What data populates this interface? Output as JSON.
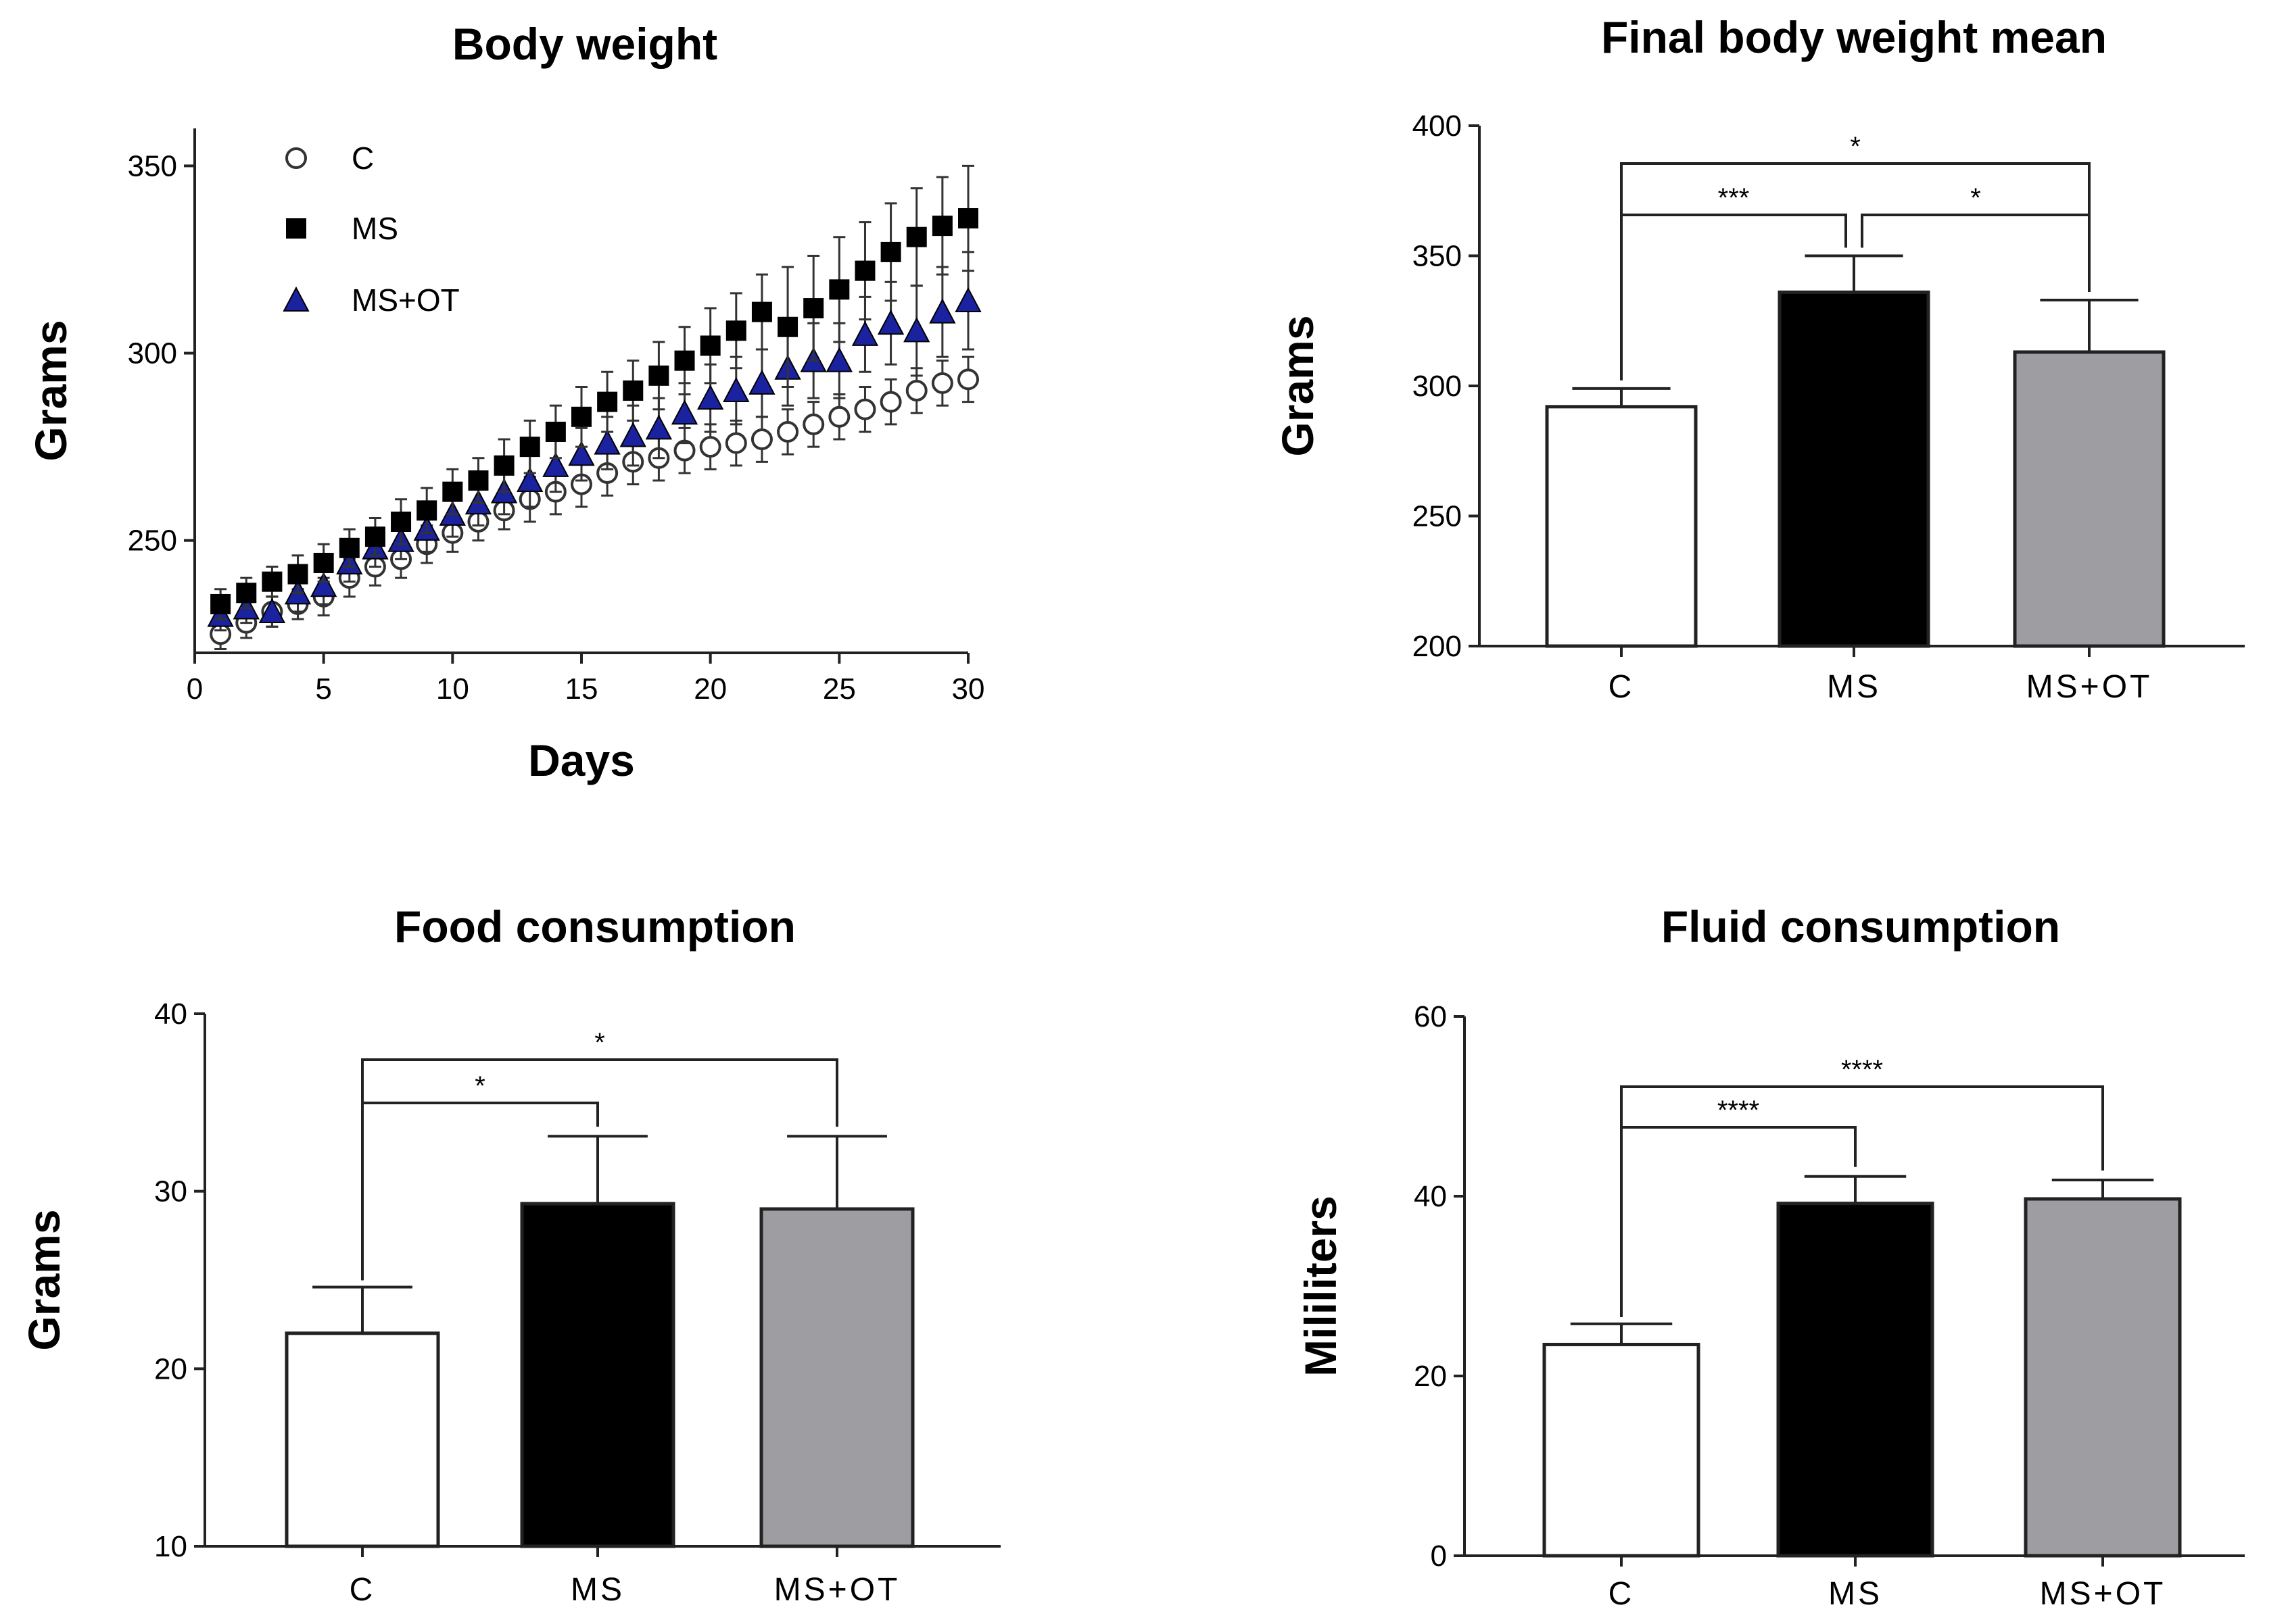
{
  "figure": {
    "panels": [
      {
        "title": "Body weight"
      },
      {
        "title": "Final body weight mean"
      },
      {
        "title": "Food consumption"
      },
      {
        "title": "Fluid consumption"
      }
    ]
  },
  "colors": {
    "C": "#ffffff",
    "MS": "#000000",
    "MS+OT_line": "#1a22a0",
    "MS+OT_bar": "#9d9da2",
    "axis": "#222222"
  },
  "chart_data": [
    {
      "type": "scatter",
      "title": "Body weight",
      "xlabel": "Days",
      "ylabel": "Grams",
      "xlim": [
        0,
        30
      ],
      "ylim": [
        220,
        360
      ],
      "xticks": [
        0,
        5,
        10,
        15,
        20,
        25,
        30
      ],
      "yticks": [
        250,
        300,
        350
      ],
      "x": [
        1,
        2,
        3,
        4,
        5,
        6,
        7,
        8,
        9,
        10,
        11,
        12,
        13,
        14,
        15,
        16,
        17,
        18,
        19,
        20,
        21,
        22,
        23,
        24,
        25,
        26,
        27,
        28,
        29,
        30
      ],
      "series": [
        {
          "name": "C",
          "marker": "circle-open",
          "values": [
            225,
            228,
            231,
            233,
            235,
            240,
            243,
            245,
            249,
            252,
            255,
            258,
            261,
            263,
            265,
            268,
            271,
            272,
            274,
            275,
            276,
            277,
            279,
            281,
            283,
            285,
            287,
            290,
            292,
            293
          ],
          "error": [
            4,
            4,
            4,
            4,
            5,
            5,
            5,
            5,
            5,
            5,
            5,
            5,
            6,
            6,
            6,
            6,
            6,
            6,
            6,
            6,
            6,
            6,
            6,
            6,
            6,
            6,
            6,
            6,
            6,
            6
          ]
        },
        {
          "name": "MS",
          "marker": "square-filled",
          "values": [
            233,
            236,
            239,
            241,
            244,
            248,
            251,
            255,
            258,
            263,
            266,
            270,
            275,
            279,
            283,
            287,
            290,
            294,
            298,
            302,
            306,
            311,
            307,
            312,
            317,
            322,
            327,
            331,
            334,
            336
          ],
          "error": [
            4,
            4,
            4,
            5,
            5,
            5,
            5,
            6,
            6,
            6,
            6,
            7,
            7,
            7,
            8,
            8,
            8,
            9,
            9,
            10,
            10,
            10,
            16,
            14,
            14,
            13,
            13,
            13,
            13,
            14
          ]
        },
        {
          "name": "MS+OT",
          "marker": "triangle-filled",
          "values": [
            230,
            232,
            231,
            236,
            238,
            244,
            248,
            250,
            253,
            257,
            260,
            263,
            266,
            270,
            273,
            276,
            278,
            280,
            284,
            288,
            290,
            292,
            296,
            298,
            298,
            305,
            308,
            306,
            311,
            314
          ],
          "error": [
            4,
            4,
            4,
            5,
            5,
            5,
            5,
            5,
            6,
            6,
            6,
            6,
            7,
            7,
            7,
            7,
            8,
            8,
            8,
            9,
            9,
            9,
            10,
            10,
            10,
            10,
            11,
            12,
            12,
            13
          ]
        }
      ],
      "legend": "top-left"
    },
    {
      "type": "bar",
      "title": "Final body weight mean",
      "ylabel": "Grams",
      "categories": [
        "C",
        "MS",
        "MS+OT"
      ],
      "values": [
        292,
        336,
        313
      ],
      "error": [
        7,
        14,
        20
      ],
      "ylim": [
        200,
        400
      ],
      "yticks": [
        200,
        250,
        300,
        350,
        400
      ],
      "significance": [
        {
          "from": "C",
          "to": "MS",
          "label": "***"
        },
        {
          "from": "MS",
          "to": "MS+OT",
          "label": "*"
        },
        {
          "from": "C",
          "to": "MS+OT",
          "label": "*"
        }
      ]
    },
    {
      "type": "bar",
      "title": "Food consumption",
      "ylabel": "Grams",
      "categories": [
        "C",
        "MS",
        "MS+OT"
      ],
      "values": [
        22.0,
        29.3,
        29.0
      ],
      "error": [
        2.6,
        3.8,
        4.1
      ],
      "ylim": [
        10,
        40
      ],
      "yticks": [
        10,
        20,
        30,
        40
      ],
      "significance": [
        {
          "from": "C",
          "to": "MS",
          "label": "*"
        },
        {
          "from": "C",
          "to": "MS+OT",
          "label": "*"
        }
      ]
    },
    {
      "type": "bar",
      "title": "Fluid consumption",
      "ylabel": "Mililiters",
      "categories": [
        "C",
        "MS",
        "MS+OT"
      ],
      "values": [
        23.5,
        39.2,
        39.7
      ],
      "error": [
        2.3,
        3.0,
        2.1
      ],
      "ylim": [
        0,
        60
      ],
      "yticks": [
        0,
        20,
        40,
        60
      ],
      "significance": [
        {
          "from": "C",
          "to": "MS",
          "label": "****"
        },
        {
          "from": "C",
          "to": "MS+OT",
          "label": "****"
        }
      ]
    }
  ]
}
